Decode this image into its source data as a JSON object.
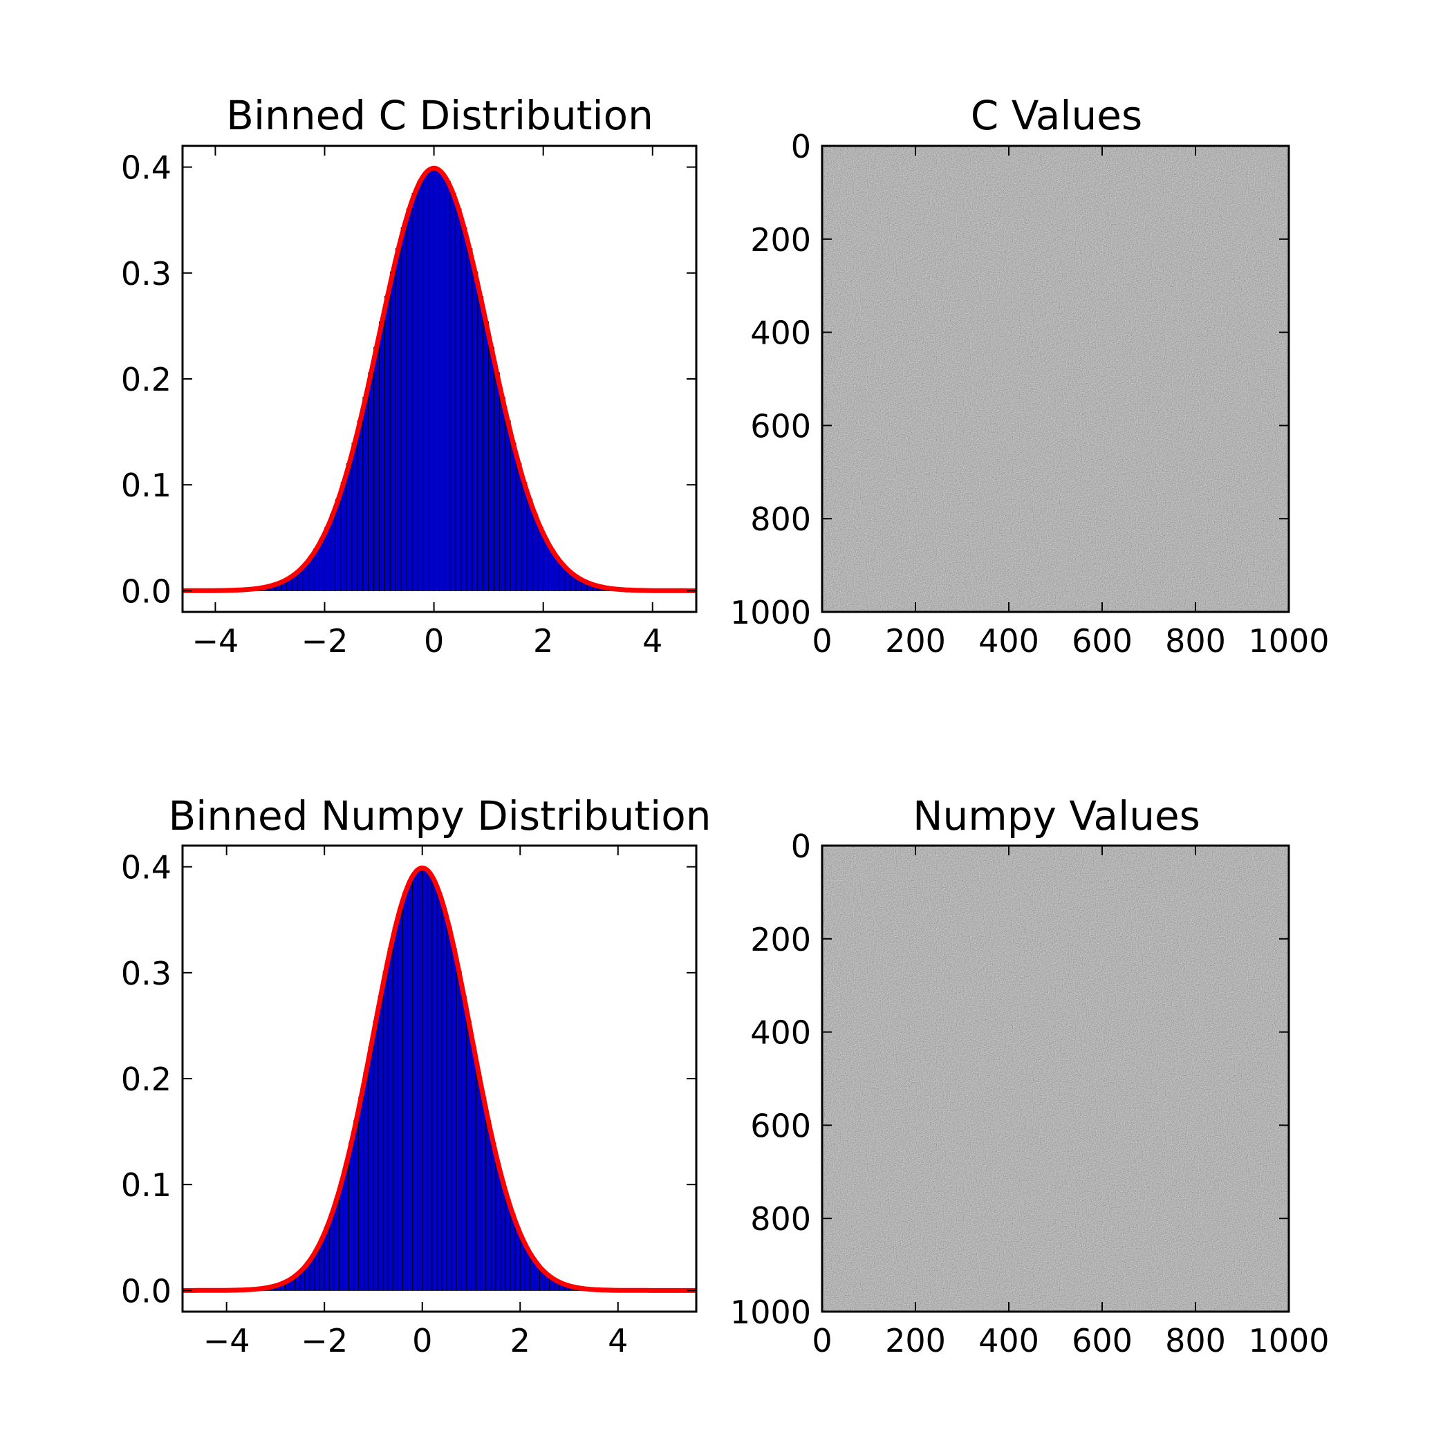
{
  "figure": {
    "background": "#ffffff",
    "bar_color": "#0000cc",
    "bar_edge_color": "#000000",
    "curve_color": "#ff0000",
    "axis_color": "#000000",
    "image_gray": "#9a9a9a"
  },
  "chart_data": [
    {
      "type": "bar",
      "title": "Binned C Distribution",
      "xlim": [
        -4.6,
        4.8
      ],
      "ylim": [
        -0.02,
        0.42
      ],
      "xticks": [
        -4,
        -2,
        0,
        2,
        4
      ],
      "xtick_labels": [
        "−4",
        "−2",
        "0",
        "2",
        "4"
      ],
      "yticks": [
        0.0,
        0.1,
        0.2,
        0.3,
        0.4
      ],
      "ytick_labels": [
        "0.0",
        "0.1",
        "0.2",
        "0.3",
        "0.4"
      ],
      "bins": {
        "start": -4.0,
        "end": 4.3,
        "width": 0.1
      },
      "density": "standard normal",
      "curve": {
        "mean": 0,
        "std": 1,
        "color": "#ff0000"
      },
      "grid": false
    },
    {
      "type": "heatmap",
      "title": "C Values",
      "colormap": "gray",
      "xlim": [
        0,
        1000
      ],
      "ylim": [
        1000,
        0
      ],
      "xticks": [
        0,
        200,
        400,
        600,
        800,
        1000
      ],
      "xtick_labels": [
        "0",
        "200",
        "400",
        "600",
        "800",
        "1000"
      ],
      "yticks": [
        0,
        200,
        400,
        600,
        800,
        1000
      ],
      "ytick_labels": [
        "0",
        "200",
        "400",
        "600",
        "800",
        "1000"
      ],
      "grid": false
    },
    {
      "type": "bar",
      "title": "Binned Numpy Distribution",
      "xlim": [
        -4.9,
        5.6
      ],
      "ylim": [
        -0.02,
        0.42
      ],
      "xticks": [
        -4,
        -2,
        0,
        2,
        4
      ],
      "xtick_labels": [
        "−4",
        "−2",
        "0",
        "2",
        "4"
      ],
      "yticks": [
        0.0,
        0.1,
        0.2,
        0.3,
        0.4
      ],
      "ytick_labels": [
        "0.0",
        "0.1",
        "0.2",
        "0.3",
        "0.4"
      ],
      "bins": {
        "start": -4.4,
        "end": 4.6,
        "width": 0.1
      },
      "density": "standard normal",
      "curve": {
        "mean": 0,
        "std": 1,
        "color": "#ff0000"
      },
      "grid": false
    },
    {
      "type": "heatmap",
      "title": "Numpy Values",
      "colormap": "gray",
      "xlim": [
        0,
        1000
      ],
      "ylim": [
        1000,
        0
      ],
      "xticks": [
        0,
        200,
        400,
        600,
        800,
        1000
      ],
      "xtick_labels": [
        "0",
        "200",
        "400",
        "600",
        "800",
        "1000"
      ],
      "yticks": [
        0,
        200,
        400,
        600,
        800,
        1000
      ],
      "ytick_labels": [
        "0",
        "200",
        "400",
        "600",
        "800",
        "1000"
      ],
      "grid": false
    }
  ]
}
